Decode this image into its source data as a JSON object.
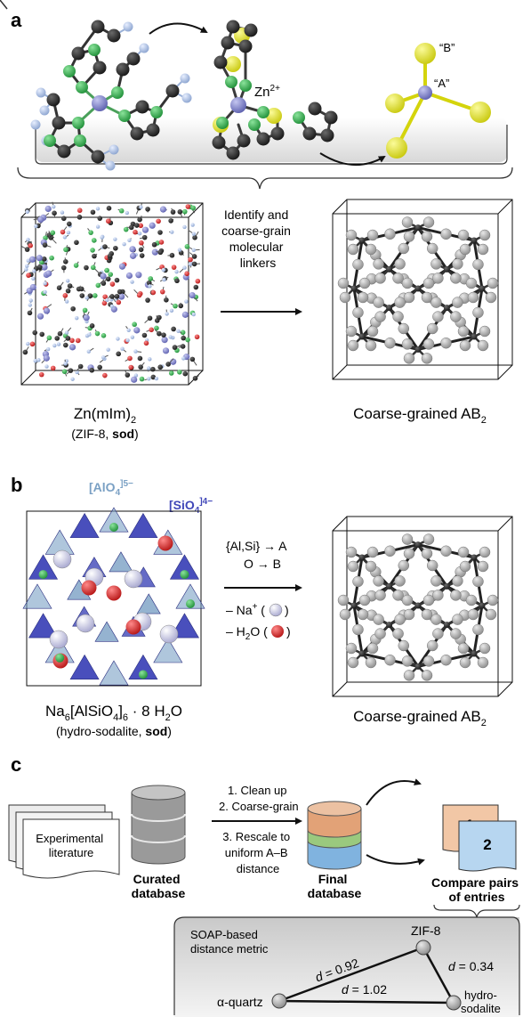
{
  "panel_a": {
    "label": "a",
    "zn_label": "Zn",
    "zn_charge": "2+",
    "label_A": "“A”",
    "label_B": "“B”",
    "step": [
      "Identify and",
      "coarse-grain",
      "molecular",
      "linkers"
    ],
    "left_formula": "Zn(mIm)",
    "left_formula_sub": "2",
    "left_note_prefix": "(ZIF-8, ",
    "left_note_bold": "sod",
    "left_note_suffix": ")",
    "right_caption": "Coarse-grained AB",
    "right_caption_sub": "2"
  },
  "panel_b": {
    "label": "b",
    "alo4": "[AlO",
    "alo4_sub": "4",
    "alo4_sup": "]5−",
    "sio4": "[SiO",
    "sio4_sub": "4",
    "sio4_sup": "]4−",
    "rule1": "{Al,Si} → A",
    "rule2": "O → B",
    "remove_na": "– Na",
    "remove_na_sup": "+",
    "remove_h2o_pre": "– H",
    "remove_h2o_sub": "2",
    "remove_h2o_post": "O",
    "formula_parts": [
      "Na",
      "6",
      "[AlSiO",
      "4",
      "]",
      "6",
      " · 8 H",
      "2",
      "O"
    ],
    "note_prefix": "(hydro-sodalite, ",
    "note_bold": "sod",
    "note_suffix": ")",
    "right_caption": "Coarse-grained AB",
    "right_caption_sub": "2"
  },
  "panel_c": {
    "label": "c",
    "lit": [
      "Experimental",
      "literature"
    ],
    "curated": [
      "Curated",
      "database"
    ],
    "steps_top": [
      "1. Clean up",
      "2. Coarse-grain"
    ],
    "steps_bottom": [
      "3. Rescale to",
      "uniform A–B",
      "distance"
    ],
    "final": [
      "Final",
      "database"
    ],
    "card1": "1",
    "card2": "2",
    "compare": [
      "Compare pairs",
      "of entries"
    ],
    "soap": [
      "SOAP-based",
      "distance metric"
    ],
    "node_zif": "ZIF-8",
    "node_quartz": "α-quartz",
    "node_hydro": [
      "hydro-",
      "sodalite"
    ],
    "d_italic": "d",
    "d1": " = 0.92",
    "d2": " = 0.34",
    "d3": " = 1.02"
  },
  "colors": {
    "zinc": "#7d7fc8",
    "nitrogen": "#2fae4a",
    "carbon": "#262626",
    "hydrogen": "#a9bedf",
    "yellow": "#eaea2a",
    "oxygen": "#d42020",
    "sio4": "#3f46b8",
    "alo4": "#7aa0c4",
    "disk_orange": "#e2a277",
    "disk_green": "#9ac97e",
    "disk_blue": "#80b3df"
  }
}
